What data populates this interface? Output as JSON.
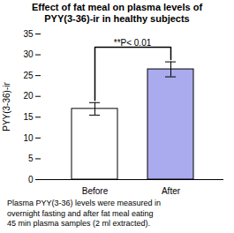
{
  "chart_data": {
    "type": "bar",
    "title": "Effect of fat meal on plasma levels of\nPYY(3-36)-ir in healthy subjects",
    "categories": [
      "Before",
      "After"
    ],
    "values": [
      17.0,
      26.5
    ],
    "errors": [
      1.5,
      1.8
    ],
    "colors": [
      "#ffffff",
      "#aaaaee"
    ],
    "ylabel": "PYY(3-36)-ir",
    "ylim": [
      0,
      35
    ],
    "yticks": [
      0,
      5,
      10,
      15,
      20,
      25,
      30,
      35
    ],
    "annotation": "**P< 0.01",
    "caption": "Plasma PYY(3-36) levels were measured in\novernight fasting and after fat meal eating\n45 min plasma samples (2 ml extracted).",
    "grid": false
  }
}
